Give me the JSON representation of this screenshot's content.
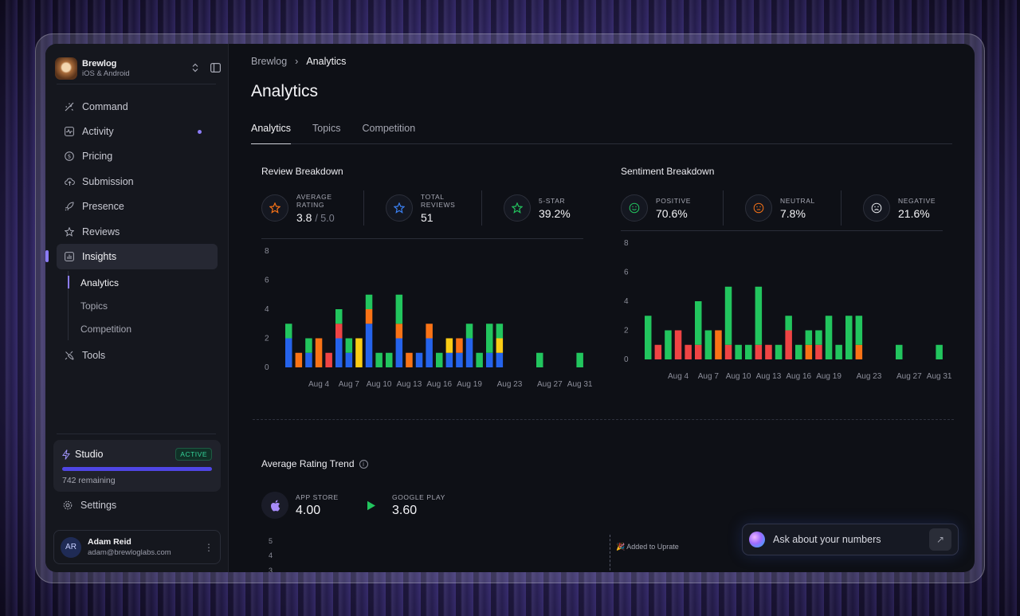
{
  "workspace": {
    "name": "Brewlog",
    "subtitle": "iOS & Android"
  },
  "nav": {
    "items": [
      {
        "label": "Command",
        "icon": "command-icon"
      },
      {
        "label": "Activity",
        "icon": "activity-icon",
        "dot": true
      },
      {
        "label": "Pricing",
        "icon": "pricing-icon"
      },
      {
        "label": "Submission",
        "icon": "upload-icon"
      },
      {
        "label": "Presence",
        "icon": "rocket-icon"
      },
      {
        "label": "Reviews",
        "icon": "star-icon"
      },
      {
        "label": "Insights",
        "icon": "bar-chart-icon",
        "active": true
      }
    ],
    "sub_items": [
      {
        "label": "Analytics",
        "active": true
      },
      {
        "label": "Topics"
      },
      {
        "label": "Competition"
      }
    ],
    "tools_label": "Tools"
  },
  "studio": {
    "label": "Studio",
    "badge": "ACTIVE",
    "remaining": "742 remaining",
    "progress": 1.0
  },
  "settings_label": "Settings",
  "user": {
    "initials": "AR",
    "name": "Adam Reid",
    "email": "adam@brewloglabs.com"
  },
  "breadcrumb": {
    "root": "Brewlog",
    "current": "Analytics"
  },
  "page_title": "Analytics",
  "tabs": [
    "Analytics",
    "Topics",
    "Competition"
  ],
  "review_breakdown": {
    "title": "Review Breakdown",
    "stats": [
      {
        "label": "AVERAGE RATING",
        "value": "3.8",
        "suffix": "/ 5.0"
      },
      {
        "label": "TOTAL REVIEWS",
        "value": "51"
      },
      {
        "label": "5-STAR",
        "value": "39.2%"
      }
    ]
  },
  "sentiment_breakdown": {
    "title": "Sentiment Breakdown",
    "stats": [
      {
        "label": "POSITIVE",
        "value": "70.6%"
      },
      {
        "label": "NEUTRAL",
        "value": "7.8%"
      },
      {
        "label": "NEGATIVE",
        "value": "21.6%"
      }
    ]
  },
  "rating_trend": {
    "title": "Average Rating Trend",
    "stores": [
      {
        "label": "APP STORE",
        "value": "4.00"
      },
      {
        "label": "GOOGLE PLAY",
        "value": "3.60"
      }
    ],
    "annotation": "Added to Uprate",
    "y_ticks": [
      "5",
      "4",
      "3"
    ]
  },
  "ask": {
    "placeholder": "Ask about your numbers"
  },
  "colors": {
    "green": "#22c55e",
    "blue": "#2563eb",
    "orange": "#f97316",
    "red": "#ef4444",
    "yellow": "#facc15",
    "accent": "#8b7cf6"
  },
  "chart_data": [
    {
      "type": "bar",
      "title": "Review Breakdown",
      "stacked": true,
      "ylim": [
        0,
        8
      ],
      "y_ticks": [
        0,
        2,
        4,
        6,
        8
      ],
      "x_tick_labels": [
        "Aug 4",
        "Aug 7",
        "Aug 10",
        "Aug 13",
        "Aug 16",
        "Aug 19",
        "Aug 23",
        "Aug 27",
        "Aug 31"
      ],
      "x_tick_positions": [
        3,
        6,
        9,
        12,
        15,
        18,
        22,
        26,
        29
      ],
      "colors": [
        "#2563eb",
        "#facc15",
        "#f97316",
        "#ef4444",
        "#22c55e"
      ],
      "bars": [
        [
          2,
          0,
          0,
          0,
          1
        ],
        [
          0,
          0,
          1,
          0,
          0
        ],
        [
          1,
          0,
          0,
          0,
          1
        ],
        [
          0,
          0,
          2,
          0,
          0
        ],
        [
          0,
          0,
          0,
          1,
          0
        ],
        [
          2,
          0,
          0,
          1,
          1
        ],
        [
          1,
          0,
          0,
          0,
          1
        ],
        [
          0,
          2,
          0,
          0,
          0
        ],
        [
          3,
          0,
          1,
          0,
          1
        ],
        [
          0,
          0,
          0,
          0,
          1
        ],
        [
          0,
          0,
          0,
          0,
          1
        ],
        [
          2,
          0,
          1,
          0,
          2
        ],
        [
          0,
          0,
          1,
          0,
          0
        ],
        [
          1,
          0,
          0,
          0,
          0
        ],
        [
          2,
          0,
          1,
          0,
          0
        ],
        [
          0,
          0,
          0,
          0,
          1
        ],
        [
          1,
          1,
          0,
          0,
          0
        ],
        [
          1,
          0,
          1,
          0,
          0
        ],
        [
          2,
          0,
          0,
          0,
          1
        ],
        [
          0,
          0,
          0,
          0,
          1
        ],
        [
          1,
          0,
          0,
          0,
          2
        ],
        [
          1,
          1,
          0,
          0,
          1
        ],
        [
          0,
          0,
          0,
          0,
          0
        ],
        [
          0,
          0,
          0,
          0,
          0
        ],
        [
          0,
          0,
          0,
          0,
          0
        ],
        [
          0,
          0,
          0,
          0,
          1
        ],
        [
          0,
          0,
          0,
          0,
          0
        ],
        [
          0,
          0,
          0,
          0,
          0
        ],
        [
          0,
          0,
          0,
          0,
          0
        ],
        [
          0,
          0,
          0,
          0,
          1
        ]
      ]
    },
    {
      "type": "bar",
      "title": "Sentiment Breakdown",
      "stacked": true,
      "ylim": [
        0,
        8
      ],
      "y_ticks": [
        0,
        2,
        4,
        6,
        8
      ],
      "x_tick_labels": [
        "Aug 4",
        "Aug 7",
        "Aug 10",
        "Aug 13",
        "Aug 16",
        "Aug 19",
        "Aug 23",
        "Aug 27",
        "Aug 31"
      ],
      "x_tick_positions": [
        3,
        6,
        9,
        12,
        15,
        18,
        22,
        26,
        29
      ],
      "colors": [
        "#ef4444",
        "#f97316",
        "#22c55e"
      ],
      "bars": [
        [
          0,
          0,
          3
        ],
        [
          1,
          0,
          0
        ],
        [
          0,
          0,
          2
        ],
        [
          2,
          0,
          0
        ],
        [
          1,
          0,
          0
        ],
        [
          1,
          0,
          3
        ],
        [
          0,
          0,
          2
        ],
        [
          0,
          2,
          0
        ],
        [
          1,
          0,
          4
        ],
        [
          0,
          0,
          1
        ],
        [
          0,
          0,
          1
        ],
        [
          1,
          0,
          4
        ],
        [
          1,
          0,
          0
        ],
        [
          0,
          0,
          1
        ],
        [
          2,
          0,
          1
        ],
        [
          0,
          0,
          1
        ],
        [
          0,
          1,
          1
        ],
        [
          1,
          0,
          1
        ],
        [
          0,
          0,
          3
        ],
        [
          0,
          0,
          1
        ],
        [
          0,
          0,
          3
        ],
        [
          0,
          1,
          2
        ],
        [
          0,
          0,
          0
        ],
        [
          0,
          0,
          0
        ],
        [
          0,
          0,
          0
        ],
        [
          0,
          0,
          1
        ],
        [
          0,
          0,
          0
        ],
        [
          0,
          0,
          0
        ],
        [
          0,
          0,
          0
        ],
        [
          0,
          0,
          1
        ]
      ]
    }
  ]
}
